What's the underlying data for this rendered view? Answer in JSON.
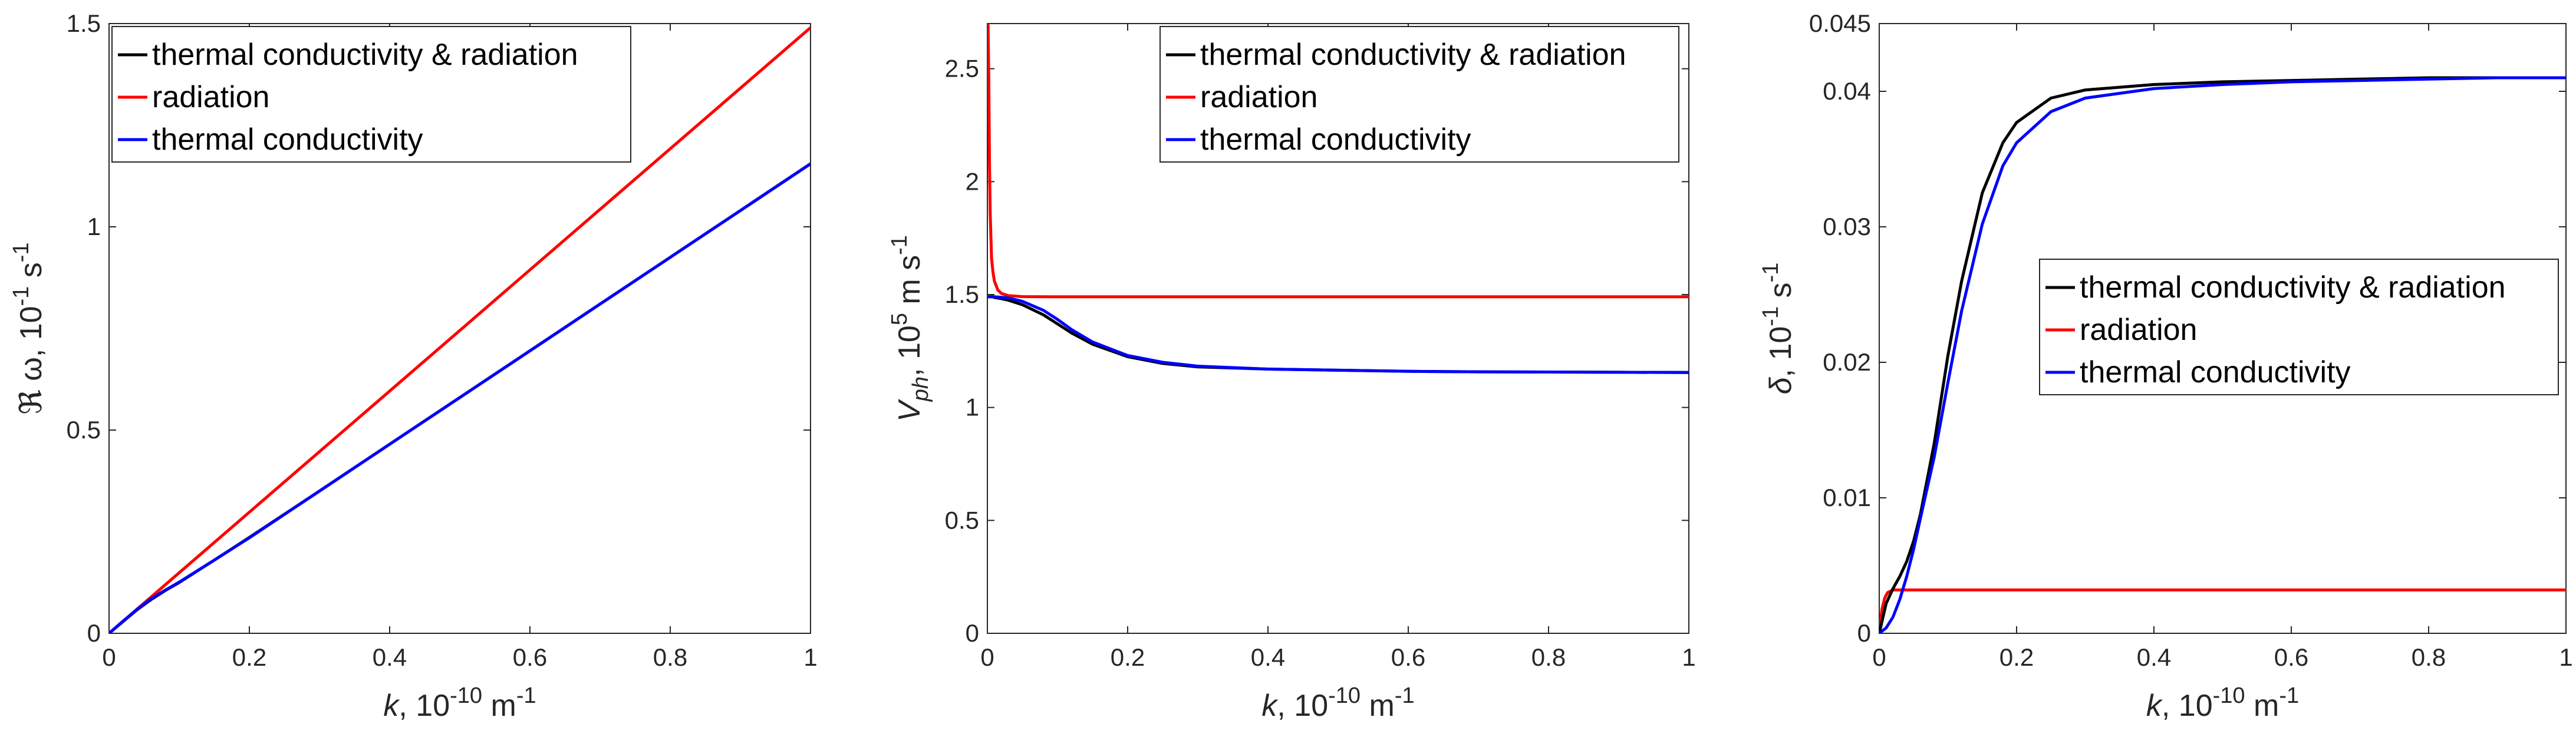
{
  "figure": {
    "panels": 3
  },
  "colors": {
    "combined": "#000000",
    "radiation": "#ff0000",
    "thermal": "#0000ff",
    "axis": "#262626",
    "legend_border": "#262626"
  },
  "chart_data": [
    {
      "type": "line",
      "title": "",
      "xlabel": {
        "sym": "k",
        "rest": ", 10",
        "sup1": "-10",
        "mid": " m",
        "sup2": "-1"
      },
      "ylabel": {
        "sym": "ℜ ω",
        "rest": ", 10",
        "sup1": "-1",
        "mid": " s",
        "sup2": "-1"
      },
      "xlim": [
        0,
        1
      ],
      "ylim": [
        0,
        1.5
      ],
      "xticks": [
        0,
        0.2,
        0.4,
        0.6,
        0.8,
        1
      ],
      "xtick_labels": [
        "0",
        "0.2",
        "0.4",
        "0.6",
        "0.8",
        "1"
      ],
      "yticks": [
        0,
        0.5,
        1,
        1.5
      ],
      "ytick_labels": [
        "0",
        "0.5",
        "1",
        "1.5"
      ],
      "legend_position": "top-left",
      "series": [
        {
          "key": "combined",
          "name": "thermal conductivity & radiation",
          "x": [
            0,
            0.02,
            0.04,
            0.06,
            0.08,
            0.1,
            0.15,
            0.2,
            0.3,
            0.4,
            0.5,
            0.6,
            0.7,
            0.8,
            0.9,
            1.0
          ],
          "y": [
            0,
            0.029,
            0.058,
            0.083,
            0.105,
            0.125,
            0.18,
            0.236,
            0.35,
            0.465,
            0.58,
            0.695,
            0.81,
            0.925,
            1.04,
            1.155
          ]
        },
        {
          "key": "radiation",
          "name": "radiation",
          "x": [
            0,
            0.1,
            0.2,
            0.3,
            0.4,
            0.5,
            0.6,
            0.7,
            0.8,
            0.9,
            1.0
          ],
          "y": [
            0,
            0.149,
            0.298,
            0.447,
            0.596,
            0.745,
            0.894,
            1.043,
            1.192,
            1.341,
            1.49
          ]
        },
        {
          "key": "thermal",
          "name": "thermal conductivity",
          "x": [
            0,
            0.02,
            0.04,
            0.06,
            0.08,
            0.1,
            0.15,
            0.2,
            0.3,
            0.4,
            0.5,
            0.6,
            0.7,
            0.8,
            0.9,
            1.0
          ],
          "y": [
            0,
            0.03,
            0.059,
            0.085,
            0.106,
            0.126,
            0.18,
            0.235,
            0.35,
            0.465,
            0.58,
            0.695,
            0.81,
            0.925,
            1.04,
            1.155
          ]
        }
      ]
    },
    {
      "type": "line",
      "title": "",
      "xlabel": {
        "sym": "k",
        "rest": ", 10",
        "sup1": "-10",
        "mid": " m",
        "sup2": "-1"
      },
      "ylabel": {
        "sym": "V",
        "sub": "ph",
        "rest": ", 10",
        "sup1": "5",
        "mid": " m s",
        "sup2": "-1"
      },
      "xlim": [
        0,
        1
      ],
      "ylim": [
        0,
        2.7
      ],
      "xticks": [
        0,
        0.2,
        0.4,
        0.6,
        0.8,
        1
      ],
      "xtick_labels": [
        "0",
        "0.2",
        "0.4",
        "0.6",
        "0.8",
        "1"
      ],
      "yticks": [
        0,
        0.5,
        1,
        1.5,
        2,
        2.5
      ],
      "ytick_labels": [
        "0",
        "0.5",
        "1",
        "1.5",
        "2",
        "2.5"
      ],
      "legend_position": "top-right",
      "series": [
        {
          "key": "combined",
          "name": "thermal conductivity & radiation",
          "x": [
            0.002,
            0.004,
            0.006,
            0.008,
            0.01,
            0.015,
            0.02,
            0.03,
            0.05,
            0.08,
            0.1,
            0.12,
            0.15,
            0.2,
            0.25,
            0.3,
            0.4,
            0.5,
            0.6,
            0.7,
            0.8,
            0.9,
            1.0
          ],
          "y": [
            1.49,
            1.49,
            1.49,
            1.49,
            1.487,
            1.485,
            1.482,
            1.475,
            1.455,
            1.41,
            1.37,
            1.33,
            1.28,
            1.225,
            1.195,
            1.18,
            1.17,
            1.165,
            1.16,
            1.158,
            1.157,
            1.156,
            1.155
          ]
        },
        {
          "key": "radiation",
          "name": "radiation",
          "x": [
            0.001,
            0.002,
            0.003,
            0.004,
            0.006,
            0.008,
            0.01,
            0.015,
            0.02,
            0.03,
            0.05,
            0.1,
            0.2,
            0.4,
            0.6,
            0.8,
            1.0
          ],
          "y": [
            2.7,
            2.45,
            2.08,
            1.86,
            1.66,
            1.6,
            1.56,
            1.52,
            1.505,
            1.495,
            1.491,
            1.49,
            1.49,
            1.49,
            1.49,
            1.49,
            1.49
          ]
        },
        {
          "key": "thermal",
          "name": "thermal conductivity",
          "x": [
            0,
            0.01,
            0.02,
            0.03,
            0.05,
            0.08,
            0.1,
            0.12,
            0.15,
            0.2,
            0.25,
            0.3,
            0.4,
            0.5,
            0.6,
            0.7,
            0.8,
            0.9,
            1.0
          ],
          "y": [
            1.49,
            1.49,
            1.488,
            1.485,
            1.47,
            1.43,
            1.39,
            1.345,
            1.29,
            1.23,
            1.2,
            1.183,
            1.17,
            1.165,
            1.16,
            1.158,
            1.157,
            1.156,
            1.155
          ]
        }
      ]
    },
    {
      "type": "line",
      "title": "",
      "xlabel": {
        "sym": "k",
        "rest": ", 10",
        "sup1": "-10",
        "mid": " m",
        "sup2": "-1"
      },
      "ylabel": {
        "sym": "δ",
        "rest": ", 10",
        "sup1": "-1",
        "mid": " s",
        "sup2": "-1"
      },
      "xlim": [
        0,
        1
      ],
      "ylim": [
        0,
        0.045
      ],
      "xticks": [
        0,
        0.2,
        0.4,
        0.6,
        0.8,
        1
      ],
      "xtick_labels": [
        "0",
        "0.2",
        "0.4",
        "0.6",
        "0.8",
        "1"
      ],
      "yticks": [
        0,
        0.01,
        0.02,
        0.03,
        0.04,
        0.045
      ],
      "ytick_labels": [
        "0",
        "0.01",
        "0.02",
        "0.03",
        "0.04",
        "0.045"
      ],
      "legend_position": "center-right",
      "series": [
        {
          "key": "combined",
          "name": "thermal conductivity & radiation",
          "x": [
            0,
            0.01,
            0.02,
            0.03,
            0.04,
            0.05,
            0.06,
            0.08,
            0.1,
            0.12,
            0.15,
            0.18,
            0.2,
            0.25,
            0.3,
            0.4,
            0.5,
            0.6,
            0.7,
            0.8,
            0.9,
            1.0
          ],
          "y": [
            0,
            0.0022,
            0.0033,
            0.0042,
            0.0053,
            0.0068,
            0.0088,
            0.014,
            0.0205,
            0.026,
            0.0325,
            0.0362,
            0.0377,
            0.0395,
            0.0401,
            0.0405,
            0.0407,
            0.0408,
            0.0409,
            0.041,
            0.041,
            0.041
          ]
        },
        {
          "key": "radiation",
          "name": "radiation",
          "x": [
            0,
            0.004,
            0.008,
            0.012,
            0.016,
            0.02,
            0.03,
            0.05,
            0.1,
            0.2,
            0.4,
            0.6,
            0.8,
            1.0
          ],
          "y": [
            0,
            0.0018,
            0.0026,
            0.003,
            0.0031,
            0.0032,
            0.0032,
            0.0032,
            0.0032,
            0.0032,
            0.0032,
            0.0032,
            0.0032,
            0.0032
          ]
        },
        {
          "key": "thermal",
          "name": "thermal conductivity",
          "x": [
            0,
            0.01,
            0.02,
            0.03,
            0.04,
            0.05,
            0.06,
            0.08,
            0.1,
            0.12,
            0.15,
            0.18,
            0.2,
            0.25,
            0.3,
            0.4,
            0.5,
            0.6,
            0.7,
            0.8,
            0.9,
            1.0
          ],
          "y": [
            0,
            0.0004,
            0.0012,
            0.0025,
            0.0042,
            0.0062,
            0.0085,
            0.013,
            0.0185,
            0.0238,
            0.0302,
            0.0345,
            0.0362,
            0.0385,
            0.0395,
            0.0402,
            0.0405,
            0.0407,
            0.0408,
            0.0409,
            0.041,
            0.041
          ]
        }
      ]
    }
  ]
}
